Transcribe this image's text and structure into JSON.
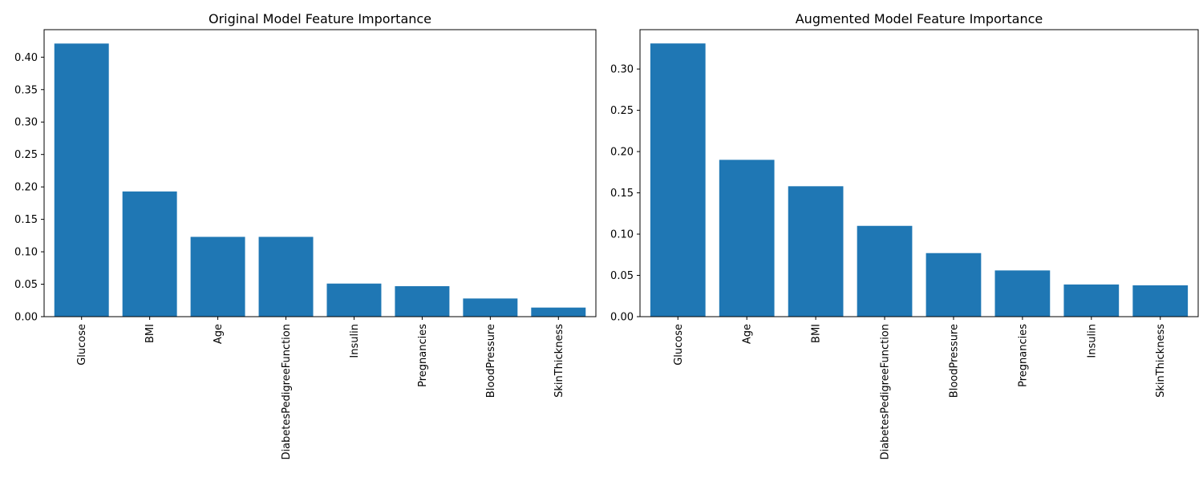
{
  "chart_data": [
    {
      "type": "bar",
      "title": "Original Model Feature Importance",
      "xlabel": "",
      "ylabel": "",
      "categories": [
        "Glucose",
        "BMI",
        "Age",
        "DiabetesPedigreeFunction",
        "Insulin",
        "Pregnancies",
        "BloodPressure",
        "SkinThickness"
      ],
      "values": [
        0.421,
        0.193,
        0.123,
        0.123,
        0.051,
        0.047,
        0.028,
        0.014
      ],
      "ylim": [
        0,
        0.4424
      ],
      "yticks": [
        0.0,
        0.05,
        0.1,
        0.15,
        0.2,
        0.25,
        0.3,
        0.35,
        0.4
      ],
      "ytick_labels": [
        "0.00",
        "0.05",
        "0.10",
        "0.15",
        "0.20",
        "0.25",
        "0.30",
        "0.35",
        "0.40"
      ],
      "bar_color": "#1f77b4",
      "grid": false,
      "legend": "none"
    },
    {
      "type": "bar",
      "title": "Augmented Model Feature Importance",
      "xlabel": "",
      "ylabel": "",
      "categories": [
        "Glucose",
        "Age",
        "BMI",
        "DiabetesPedigreeFunction",
        "BloodPressure",
        "Pregnancies",
        "Insulin",
        "SkinThickness"
      ],
      "values": [
        0.331,
        0.19,
        0.158,
        0.11,
        0.077,
        0.056,
        0.039,
        0.038
      ],
      "ylim": [
        0,
        0.3477
      ],
      "yticks": [
        0.0,
        0.05,
        0.1,
        0.15,
        0.2,
        0.25,
        0.3
      ],
      "ytick_labels": [
        "0.00",
        "0.05",
        "0.10",
        "0.15",
        "0.20",
        "0.25",
        "0.30"
      ],
      "bar_color": "#1f77b4",
      "grid": false,
      "legend": "none"
    }
  ]
}
